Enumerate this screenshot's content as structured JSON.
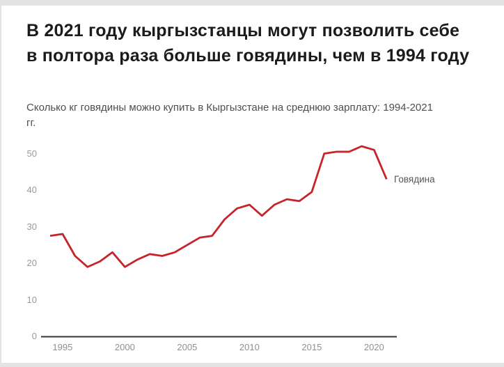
{
  "header": {
    "title": "В 2021 году кыргызстанцы могут позволить себе в полтора раза больше говядины, чем в 1994 году",
    "subtitle": "Сколько кг говядины можно купить в Кыргызстане на среднюю зарплату: 1994-2021 гг."
  },
  "chart_data": {
    "type": "line",
    "title": "В 2021 году кыргызстанцы могут позволить себе в полтора раза больше говядины, чем в 1994 году",
    "subtitle": "Сколько кг говядины можно купить в Кыргызстане на среднюю зарплату: 1994-2021 гг.",
    "x": [
      1994,
      1995,
      1996,
      1997,
      1998,
      1999,
      2000,
      2001,
      2002,
      2003,
      2004,
      2005,
      2006,
      2007,
      2008,
      2009,
      2010,
      2011,
      2012,
      2013,
      2014,
      2015,
      2016,
      2017,
      2018,
      2019,
      2020,
      2021
    ],
    "series": [
      {
        "name": "Говядина",
        "color": "#c7232a",
        "values": [
          27.5,
          28,
          22,
          19,
          20.5,
          23,
          19,
          21,
          22.5,
          22,
          23,
          25,
          27,
          27.5,
          32,
          35,
          36,
          33,
          36,
          37.5,
          37,
          39.5,
          50,
          50.5,
          50.5,
          52,
          51,
          43
        ]
      }
    ],
    "x_ticks": [
      1995,
      2000,
      2005,
      2010,
      2015,
      2020
    ],
    "y_ticks": [
      0,
      10,
      20,
      30,
      40,
      50
    ],
    "xlim": [
      1994,
      2021
    ],
    "ylim": [
      0,
      55
    ],
    "grid": false,
    "legend": "end-of-line-label",
    "axis_color": "#343434",
    "tick_label_color": "#9a9a9a",
    "xlabel": "",
    "ylabel": ""
  }
}
